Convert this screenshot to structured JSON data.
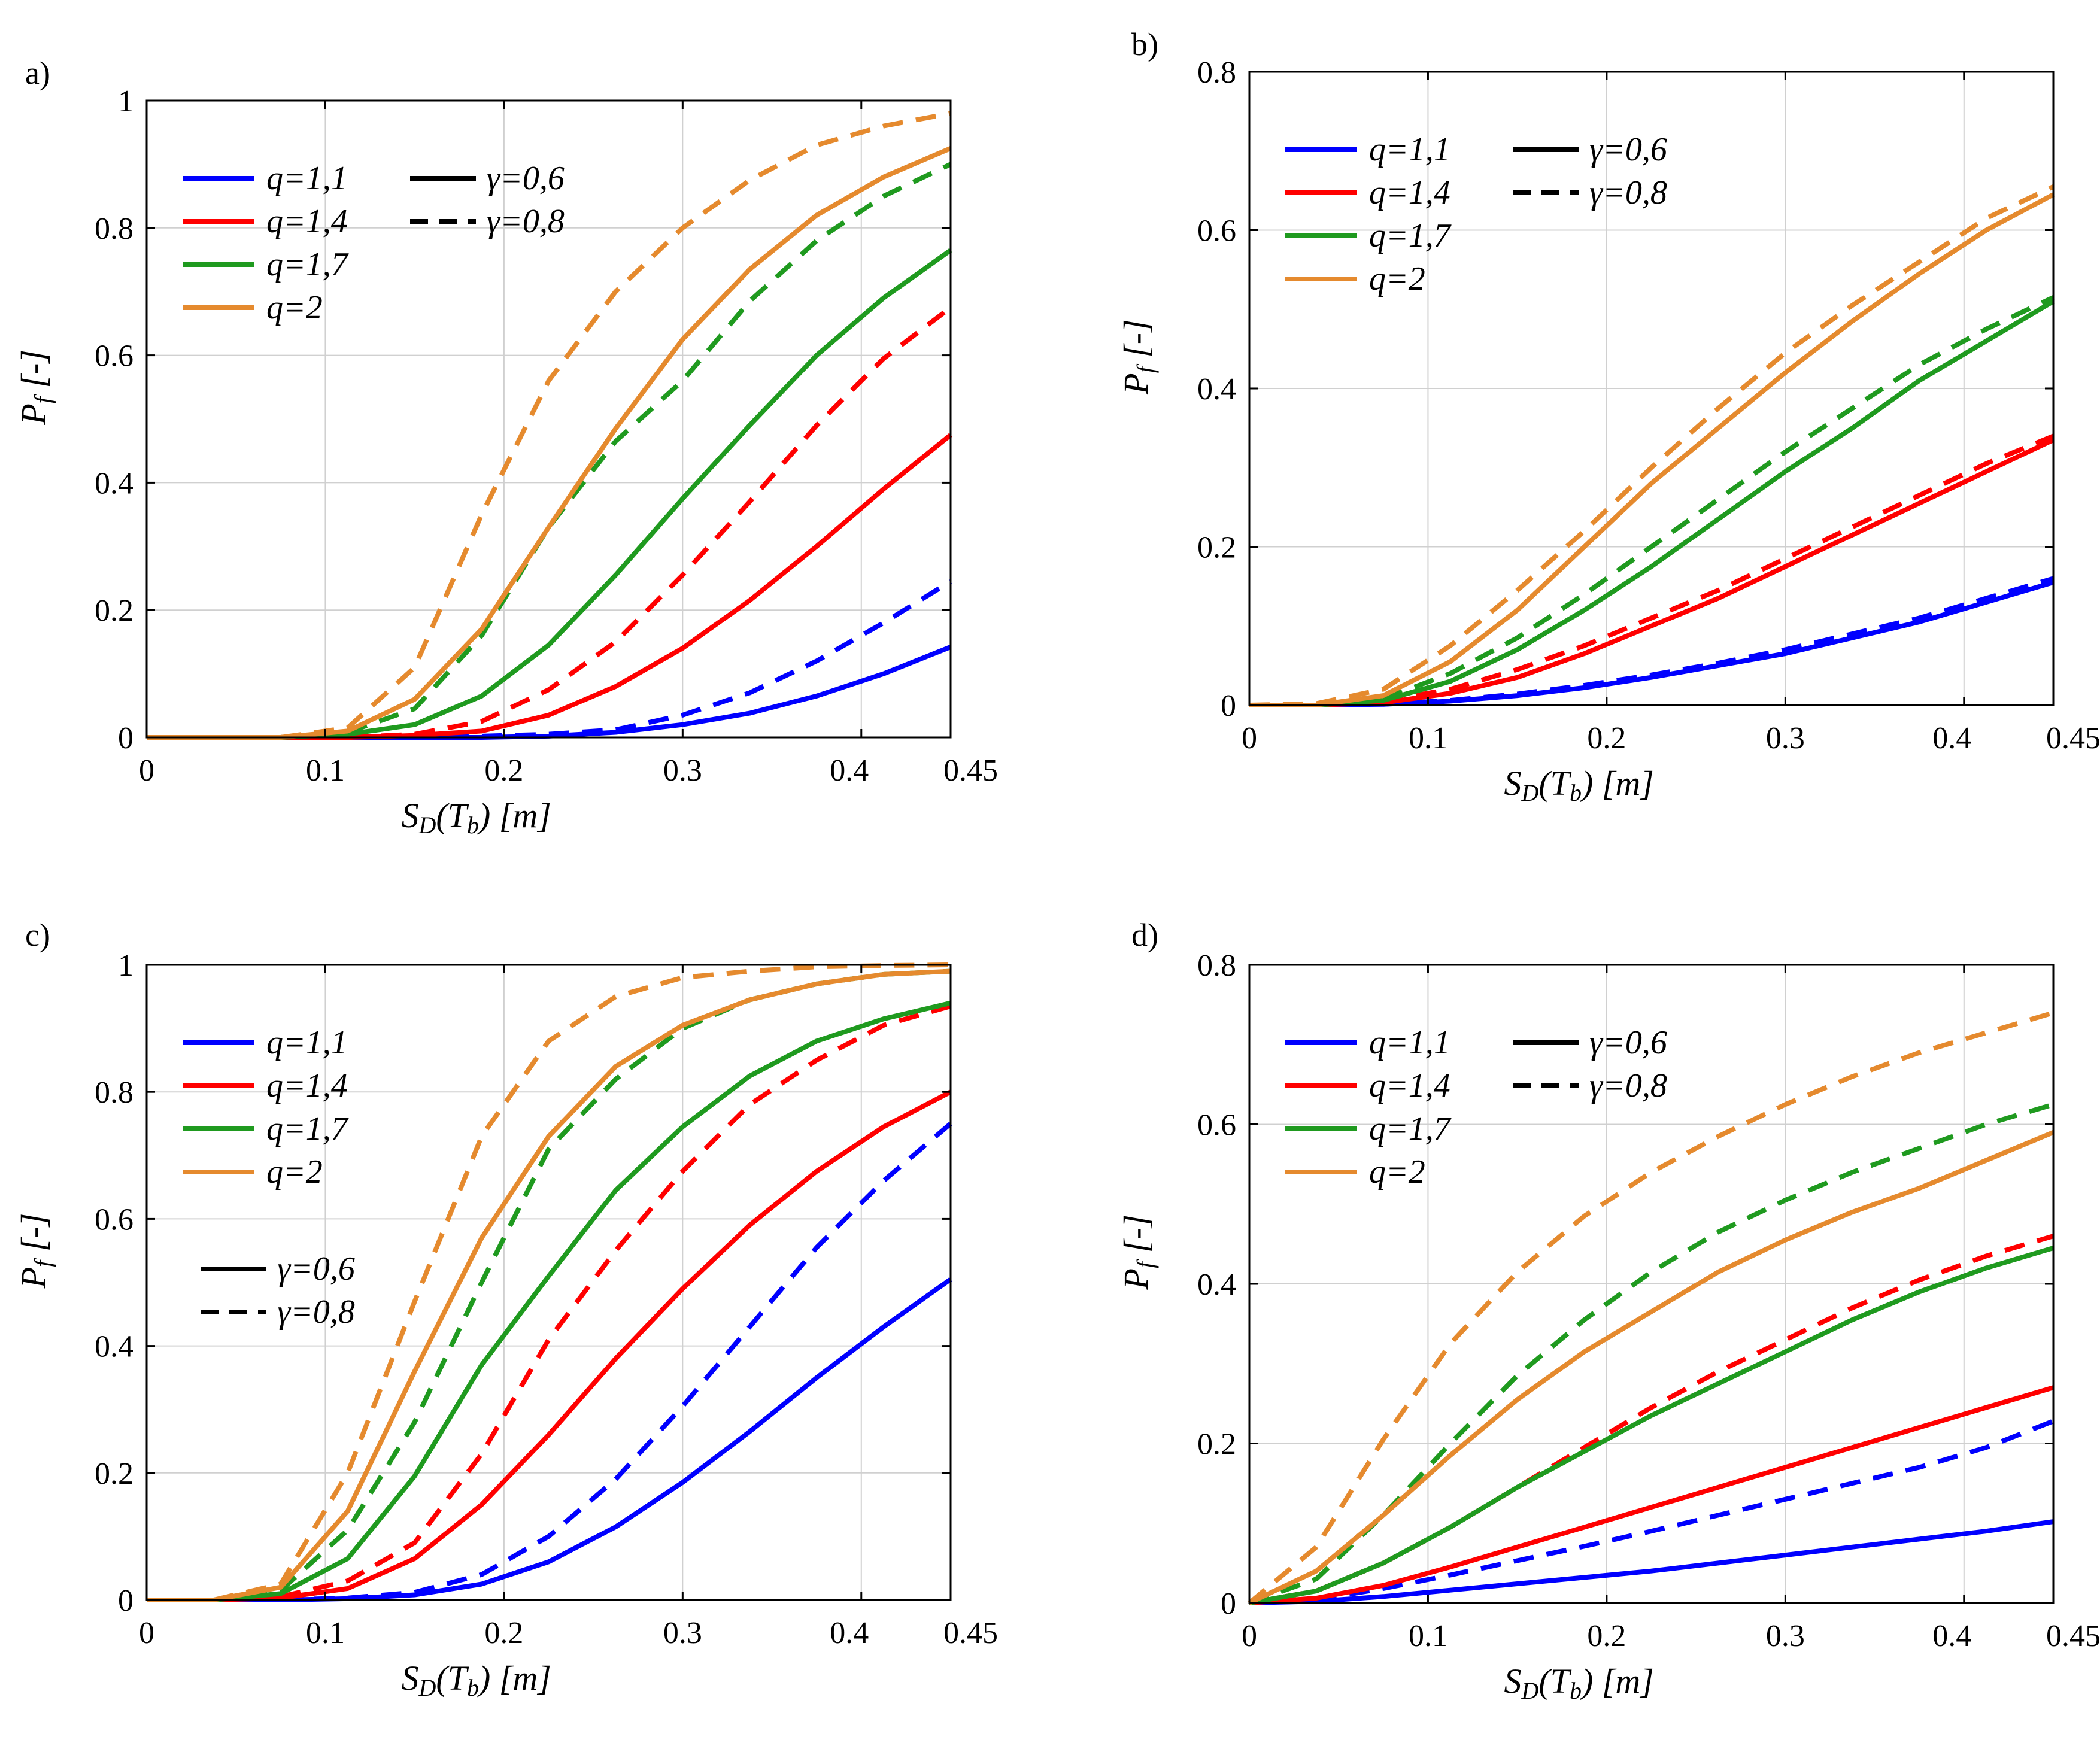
{
  "colors": {
    "q11": "#0000ff",
    "q14": "#ff0000",
    "q17": "#1f9a1f",
    "q2": "#e58a2e"
  },
  "chart_data": [
    {
      "panel_label": "a)",
      "type": "line",
      "xlabel_main": "S",
      "xlabel_sub": "D",
      "xlabel_rest": "(T",
      "xlabel_sub2": "b",
      "xlabel_end": ") [m]",
      "ylabel_main": "P",
      "ylabel_sub": "f",
      "ylabel_rest": " [-]",
      "xlim": [
        0,
        0.45
      ],
      "ylim": [
        0,
        1
      ],
      "xticks": [
        0,
        0.1,
        0.2,
        0.3,
        0.4,
        0.45
      ],
      "xtick_labels": [
        "0",
        "0.1",
        "0.2",
        "0.3",
        "0.4",
        "0.45"
      ],
      "yticks": [
        0,
        0.2,
        0.4,
        0.6,
        0.8,
        1
      ],
      "ytick_labels": [
        "0",
        "0.2",
        "0.4",
        "0.6",
        "0.8",
        "1"
      ],
      "legend": {
        "q": [
          {
            "text": "q=1,1",
            "color": "#0000ff"
          },
          {
            "text": "q=1,4",
            "color": "#ff0000"
          },
          {
            "text": "q=1,7",
            "color": "#1f9a1f"
          },
          {
            "text": "q=2",
            "color": "#e58a2e"
          }
        ],
        "gamma": [
          {
            "text": "γ=0,6",
            "dash": false
          },
          {
            "text": "γ=0,8",
            "dash": true
          }
        ],
        "layout": "beside"
      },
      "x": [
        0,
        0.0375,
        0.075,
        0.1125,
        0.15,
        0.1875,
        0.225,
        0.2625,
        0.3,
        0.3375,
        0.375,
        0.4125,
        0.45
      ],
      "series": [
        {
          "q": "q=1,1",
          "gamma": "γ=0,6",
          "color": "#0000ff",
          "dashed": false,
          "values": [
            0,
            0,
            0,
            0,
            0,
            0,
            0.002,
            0.008,
            0.02,
            0.038,
            0.065,
            0.1,
            0.142
          ]
        },
        {
          "q": "q=1,1",
          "gamma": "γ=0,8",
          "color": "#0000ff",
          "dashed": true,
          "values": [
            0,
            0,
            0,
            0,
            0,
            0.002,
            0.005,
            0.012,
            0.035,
            0.07,
            0.12,
            0.18,
            0.245
          ]
        },
        {
          "q": "q=1,4",
          "gamma": "γ=0,6",
          "color": "#ff0000",
          "dashed": false,
          "values": [
            0,
            0,
            0,
            0,
            0.003,
            0.01,
            0.035,
            0.08,
            0.14,
            0.215,
            0.3,
            0.39,
            0.475
          ]
        },
        {
          "q": "q=1,4",
          "gamma": "γ=0,8",
          "color": "#ff0000",
          "dashed": true,
          "values": [
            0,
            0,
            0,
            0,
            0.005,
            0.025,
            0.075,
            0.15,
            0.255,
            0.37,
            0.49,
            0.595,
            0.675
          ]
        },
        {
          "q": "q=1,7",
          "gamma": "γ=0,6",
          "color": "#1f9a1f",
          "dashed": false,
          "values": [
            0,
            0,
            0,
            0.005,
            0.02,
            0.065,
            0.145,
            0.255,
            0.375,
            0.49,
            0.6,
            0.69,
            0.765
          ]
        },
        {
          "q": "q=1,7",
          "gamma": "γ=0,8",
          "color": "#1f9a1f",
          "dashed": true,
          "values": [
            0,
            0,
            0,
            0.008,
            0.045,
            0.16,
            0.33,
            0.465,
            0.56,
            0.685,
            0.78,
            0.85,
            0.9
          ]
        },
        {
          "q": "q=2",
          "gamma": "γ=0,6",
          "color": "#e58a2e",
          "dashed": false,
          "values": [
            0,
            0,
            0,
            0.01,
            0.06,
            0.17,
            0.33,
            0.485,
            0.625,
            0.735,
            0.82,
            0.88,
            0.925
          ]
        },
        {
          "q": "q=2",
          "gamma": "γ=0,8",
          "color": "#e58a2e",
          "dashed": true,
          "values": [
            0,
            0,
            0,
            0.015,
            0.11,
            0.35,
            0.56,
            0.7,
            0.8,
            0.875,
            0.93,
            0.96,
            0.98
          ]
        }
      ]
    },
    {
      "panel_label": "b)",
      "type": "line",
      "xlabel_main": "S",
      "xlabel_sub": "D",
      "xlabel_rest": "(T",
      "xlabel_sub2": "b",
      "xlabel_end": ") [m]",
      "ylabel_main": "P",
      "ylabel_sub": "f",
      "ylabel_rest": " [-]",
      "xlim": [
        0,
        0.45
      ],
      "ylim": [
        0,
        0.8
      ],
      "xticks": [
        0,
        0.1,
        0.2,
        0.3,
        0.4,
        0.45
      ],
      "xtick_labels": [
        "0",
        "0.1",
        "0.2",
        "0.3",
        "0.4",
        "0.45"
      ],
      "yticks": [
        0,
        0.2,
        0.4,
        0.6,
        0.8
      ],
      "ytick_labels": [
        "0",
        "0.2",
        "0.4",
        "0.6",
        "0.8"
      ],
      "legend": {
        "q": [
          {
            "text": "q=1,1",
            "color": "#0000ff"
          },
          {
            "text": "q=1,4",
            "color": "#ff0000"
          },
          {
            "text": "q=1,7",
            "color": "#1f9a1f"
          },
          {
            "text": "q=2",
            "color": "#e58a2e"
          }
        ],
        "gamma": [
          {
            "text": "γ=0,6",
            "dash": false
          },
          {
            "text": "γ=0,8",
            "dash": true
          }
        ],
        "layout": "beside"
      },
      "x": [
        0,
        0.0375,
        0.075,
        0.1125,
        0.15,
        0.1875,
        0.225,
        0.2625,
        0.3,
        0.3375,
        0.375,
        0.4125,
        0.45
      ],
      "series": [
        {
          "q": "q=1,1",
          "gamma": "γ=0,6",
          "color": "#0000ff",
          "dashed": false,
          "values": [
            0,
            0,
            0.001,
            0.005,
            0.012,
            0.022,
            0.035,
            0.05,
            0.065,
            0.085,
            0.105,
            0.13,
            0.155
          ]
        },
        {
          "q": "q=1,1",
          "gamma": "γ=0,8",
          "color": "#0000ff",
          "dashed": true,
          "values": [
            0,
            0,
            0.001,
            0.006,
            0.014,
            0.025,
            0.038,
            0.053,
            0.07,
            0.09,
            0.11,
            0.135,
            0.16
          ]
        },
        {
          "q": "q=1,4",
          "gamma": "γ=0,6",
          "color": "#ff0000",
          "dashed": false,
          "values": [
            0,
            0,
            0.003,
            0.015,
            0.035,
            0.065,
            0.1,
            0.135,
            0.175,
            0.215,
            0.255,
            0.295,
            0.335
          ]
        },
        {
          "q": "q=1,4",
          "gamma": "γ=0,8",
          "color": "#ff0000",
          "dashed": true,
          "values": [
            0,
            0,
            0.005,
            0.02,
            0.045,
            0.075,
            0.11,
            0.145,
            0.185,
            0.225,
            0.265,
            0.305,
            0.34
          ]
        },
        {
          "q": "q=1,7",
          "gamma": "γ=0,6",
          "color": "#1f9a1f",
          "dashed": false,
          "values": [
            0,
            0,
            0.006,
            0.03,
            0.07,
            0.12,
            0.175,
            0.235,
            0.295,
            0.35,
            0.41,
            0.46,
            0.51
          ]
        },
        {
          "q": "q=1,7",
          "gamma": "γ=0,8",
          "color": "#1f9a1f",
          "dashed": true,
          "values": [
            0,
            0,
            0.008,
            0.04,
            0.085,
            0.14,
            0.2,
            0.26,
            0.32,
            0.375,
            0.43,
            0.475,
            0.515
          ]
        },
        {
          "q": "q=2",
          "gamma": "γ=0,6",
          "color": "#e58a2e",
          "dashed": false,
          "values": [
            0,
            0,
            0.012,
            0.055,
            0.12,
            0.2,
            0.28,
            0.35,
            0.42,
            0.485,
            0.545,
            0.6,
            0.645
          ]
        },
        {
          "q": "q=2",
          "gamma": "γ=0,8",
          "color": "#e58a2e",
          "dashed": true,
          "values": [
            0,
            0.002,
            0.02,
            0.075,
            0.145,
            0.22,
            0.3,
            0.375,
            0.445,
            0.505,
            0.56,
            0.615,
            0.655
          ]
        }
      ]
    },
    {
      "panel_label": "c)",
      "type": "line",
      "xlabel_main": "S",
      "xlabel_sub": "D",
      "xlabel_rest": "(T",
      "xlabel_sub2": "b",
      "xlabel_end": ") [m]",
      "ylabel_main": "P",
      "ylabel_sub": "f",
      "ylabel_rest": " [-]",
      "xlim": [
        0,
        0.45
      ],
      "ylim": [
        0,
        1
      ],
      "xticks": [
        0,
        0.1,
        0.2,
        0.3,
        0.4,
        0.45
      ],
      "xtick_labels": [
        "0",
        "0.1",
        "0.2",
        "0.3",
        "0.4",
        "0.45"
      ],
      "yticks": [
        0,
        0.2,
        0.4,
        0.6,
        0.8,
        1
      ],
      "ytick_labels": [
        "0",
        "0.2",
        "0.4",
        "0.6",
        "0.8",
        "1"
      ],
      "legend": {
        "q": [
          {
            "text": "q=1,1",
            "color": "#0000ff"
          },
          {
            "text": "q=1,4",
            "color": "#ff0000"
          },
          {
            "text": "q=1,7",
            "color": "#1f9a1f"
          },
          {
            "text": "q=2",
            "color": "#e58a2e"
          }
        ],
        "gamma": [
          {
            "text": "γ=0,6",
            "dash": false
          },
          {
            "text": "γ=0,8",
            "dash": true
          }
        ],
        "layout": "below"
      },
      "x": [
        0,
        0.0375,
        0.075,
        0.1125,
        0.15,
        0.1875,
        0.225,
        0.2625,
        0.3,
        0.3375,
        0.375,
        0.4125,
        0.45
      ],
      "series": [
        {
          "q": "q=1,1",
          "gamma": "γ=0,6",
          "color": "#0000ff",
          "dashed": false,
          "values": [
            0,
            0,
            0,
            0.002,
            0.008,
            0.025,
            0.06,
            0.115,
            0.185,
            0.265,
            0.35,
            0.43,
            0.505
          ]
        },
        {
          "q": "q=1,1",
          "gamma": "γ=0,8",
          "color": "#0000ff",
          "dashed": true,
          "values": [
            0,
            0,
            0,
            0.003,
            0.012,
            0.04,
            0.1,
            0.19,
            0.305,
            0.43,
            0.555,
            0.66,
            0.75
          ]
        },
        {
          "q": "q=1,4",
          "gamma": "γ=0,6",
          "color": "#ff0000",
          "dashed": false,
          "values": [
            0,
            0,
            0.003,
            0.018,
            0.065,
            0.15,
            0.26,
            0.38,
            0.49,
            0.59,
            0.675,
            0.745,
            0.8
          ]
        },
        {
          "q": "q=1,4",
          "gamma": "γ=0,8",
          "color": "#ff0000",
          "dashed": true,
          "values": [
            0,
            0,
            0.005,
            0.03,
            0.09,
            0.23,
            0.41,
            0.55,
            0.675,
            0.78,
            0.85,
            0.905,
            0.935
          ]
        },
        {
          "q": "q=1,7",
          "gamma": "γ=0,6",
          "color": "#1f9a1f",
          "dashed": false,
          "values": [
            0,
            0,
            0.01,
            0.065,
            0.195,
            0.37,
            0.51,
            0.645,
            0.745,
            0.825,
            0.88,
            0.915,
            0.94
          ]
        },
        {
          "q": "q=1,7",
          "gamma": "γ=0,8",
          "color": "#1f9a1f",
          "dashed": true,
          "values": [
            0,
            0,
            0.015,
            0.11,
            0.28,
            0.5,
            0.71,
            0.82,
            0.9,
            0.945,
            0.97,
            0.985,
            0.99
          ]
        },
        {
          "q": "q=2",
          "gamma": "γ=0,6",
          "color": "#e58a2e",
          "dashed": false,
          "values": [
            0,
            0,
            0.02,
            0.14,
            0.36,
            0.57,
            0.73,
            0.84,
            0.905,
            0.945,
            0.97,
            0.985,
            0.99
          ]
        },
        {
          "q": "q=2",
          "gamma": "γ=0,8",
          "color": "#e58a2e",
          "dashed": true,
          "values": [
            0,
            0,
            0.025,
            0.2,
            0.47,
            0.73,
            0.88,
            0.95,
            0.98,
            0.99,
            0.997,
            0.999,
            1.0
          ]
        }
      ]
    },
    {
      "panel_label": "d)",
      "type": "line",
      "xlabel_main": "S",
      "xlabel_sub": "D",
      "xlabel_rest": "(T",
      "xlabel_sub2": "b",
      "xlabel_end": ") [m]",
      "ylabel_main": "P",
      "ylabel_sub": "f",
      "ylabel_rest": " [-]",
      "xlim": [
        0,
        0.45
      ],
      "ylim": [
        0,
        0.8
      ],
      "xticks": [
        0,
        0.1,
        0.2,
        0.3,
        0.4,
        0.45
      ],
      "xtick_labels": [
        "0",
        "0.1",
        "0.2",
        "0.3",
        "0.4",
        "0.45"
      ],
      "yticks": [
        0,
        0.2,
        0.4,
        0.6,
        0.8
      ],
      "ytick_labels": [
        "0",
        "0.2",
        "0.4",
        "0.6",
        "0.8"
      ],
      "legend": {
        "q": [
          {
            "text": "q=1,1",
            "color": "#0000ff"
          },
          {
            "text": "q=1,4",
            "color": "#ff0000"
          },
          {
            "text": "q=1,7",
            "color": "#1f9a1f"
          },
          {
            "text": "q=2",
            "color": "#e58a2e"
          }
        ],
        "gamma": [
          {
            "text": "γ=0,6",
            "dash": false
          },
          {
            "text": "γ=0,8",
            "dash": true
          }
        ],
        "layout": "beside"
      },
      "x": [
        0,
        0.0375,
        0.075,
        0.1125,
        0.15,
        0.1875,
        0.225,
        0.2625,
        0.3,
        0.3375,
        0.375,
        0.4125,
        0.45
      ],
      "series": [
        {
          "q": "q=1,1",
          "gamma": "γ=0,6",
          "color": "#0000ff",
          "dashed": false,
          "values": [
            0,
            0.002,
            0.008,
            0.016,
            0.024,
            0.032,
            0.04,
            0.05,
            0.06,
            0.07,
            0.08,
            0.09,
            0.102
          ]
        },
        {
          "q": "q=1,1",
          "gamma": "γ=0,8",
          "color": "#0000ff",
          "dashed": true,
          "values": [
            0,
            0.004,
            0.018,
            0.035,
            0.053,
            0.071,
            0.09,
            0.11,
            0.13,
            0.15,
            0.17,
            0.195,
            0.228
          ]
        },
        {
          "q": "q=1,4",
          "gamma": "γ=0,6",
          "color": "#ff0000",
          "dashed": false,
          "values": [
            0,
            0.006,
            0.022,
            0.045,
            0.07,
            0.095,
            0.12,
            0.145,
            0.17,
            0.195,
            0.22,
            0.245,
            0.27
          ]
        },
        {
          "q": "q=1,4",
          "gamma": "γ=0,8",
          "color": "#ff0000",
          "dashed": true,
          "values": [
            0,
            0.015,
            0.05,
            0.095,
            0.145,
            0.195,
            0.245,
            0.29,
            0.33,
            0.37,
            0.405,
            0.435,
            0.46
          ]
        },
        {
          "q": "q=1,7",
          "gamma": "γ=0,6",
          "color": "#1f9a1f",
          "dashed": false,
          "values": [
            0,
            0.015,
            0.05,
            0.095,
            0.145,
            0.19,
            0.235,
            0.275,
            0.315,
            0.355,
            0.39,
            0.42,
            0.445
          ]
        },
        {
          "q": "q=1,7",
          "gamma": "γ=0,8",
          "color": "#1f9a1f",
          "dashed": true,
          "values": [
            0,
            0.03,
            0.11,
            0.2,
            0.285,
            0.355,
            0.415,
            0.465,
            0.505,
            0.54,
            0.57,
            0.6,
            0.625
          ]
        },
        {
          "q": "q=2",
          "gamma": "γ=0,6",
          "color": "#e58a2e",
          "dashed": false,
          "values": [
            0,
            0.04,
            0.11,
            0.185,
            0.255,
            0.315,
            0.365,
            0.415,
            0.455,
            0.49,
            0.52,
            0.555,
            0.59
          ]
        },
        {
          "q": "q=2",
          "gamma": "γ=0,8",
          "color": "#e58a2e",
          "dashed": true,
          "values": [
            0,
            0.07,
            0.205,
            0.325,
            0.415,
            0.485,
            0.54,
            0.585,
            0.625,
            0.66,
            0.69,
            0.715,
            0.74
          ]
        }
      ]
    }
  ]
}
